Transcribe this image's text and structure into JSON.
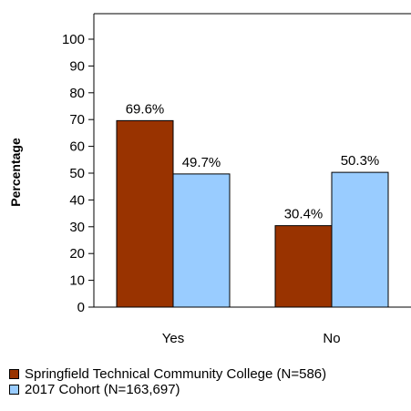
{
  "chart_data": {
    "type": "bar",
    "categories": [
      "Yes",
      "No"
    ],
    "series": [
      {
        "name": "Springfield Technical Community College (N=586)",
        "values": [
          69.6,
          30.4
        ],
        "labels": [
          "69.6%",
          "30.4%"
        ],
        "color": "#993300"
      },
      {
        "name": "2017 Cohort (N=163,697)",
        "values": [
          49.7,
          50.3
        ],
        "labels": [
          "49.7%",
          "50.3%"
        ],
        "color": "#99ccff"
      }
    ],
    "ylabel": "Percentage",
    "xlabel": "",
    "ylim": [
      0,
      100
    ],
    "yticks": [
      "0",
      "10",
      "20",
      "30",
      "40",
      "50",
      "60",
      "70",
      "80",
      "90",
      "100"
    ],
    "grid": false,
    "legend_position": "bottom-left"
  }
}
